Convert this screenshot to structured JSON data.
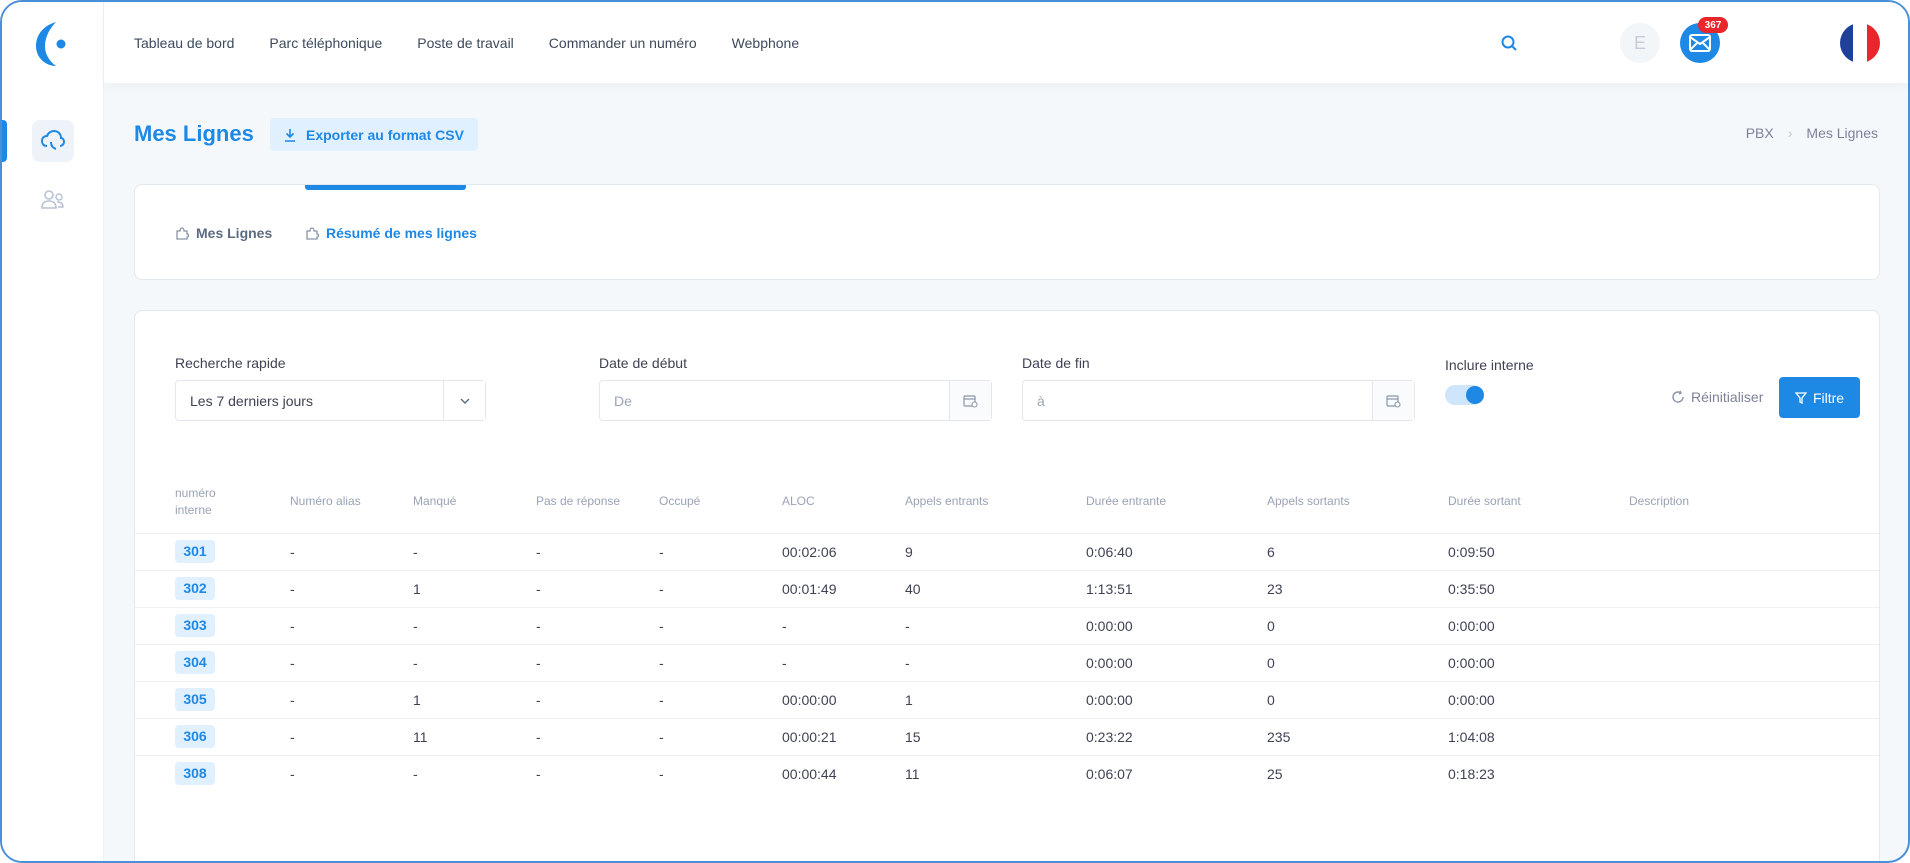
{
  "nav": {
    "items": [
      "Tableau de bord",
      "Parc téléphonique",
      "Poste de travail",
      "Commander un numéro",
      "Webphone"
    ]
  },
  "header": {
    "avatar_initial": "E",
    "mail_count": "367"
  },
  "page": {
    "title": "Mes Lignes",
    "export_label": "Exporter au format CSV",
    "breadcrumb": [
      "PBX",
      "Mes Lignes"
    ]
  },
  "tabs": [
    "Mes Lignes",
    "Résumé de mes lignes"
  ],
  "filters": {
    "quick_search_label": "Recherche rapide",
    "quick_search_value": "Les 7 derniers jours",
    "start_label": "Date de début",
    "start_placeholder": "De",
    "end_label": "Date de fin",
    "end_placeholder": "à",
    "include_internal_label": "Inclure interne",
    "include_internal_on": true,
    "reset_label": "Réinitialiser",
    "filter_label": "Filtre"
  },
  "table": {
    "headers": [
      "numéro interne",
      "Numéro alias",
      "Manqué",
      "Pas de réponse",
      "Occupé",
      "ALOC",
      "Appels entrants",
      "Durée entrante",
      "Appels sortants",
      "Durée sortant",
      "Description"
    ],
    "rows": [
      [
        "301",
        "-",
        "-",
        "-",
        "-",
        "00:02:06",
        "9",
        "0:06:40",
        "6",
        "0:09:50",
        ""
      ],
      [
        "302",
        "-",
        "1",
        "-",
        "-",
        "00:01:49",
        "40",
        "1:13:51",
        "23",
        "0:35:50",
        ""
      ],
      [
        "303",
        "-",
        "-",
        "-",
        "-",
        "-",
        "-",
        "0:00:00",
        "0",
        "0:00:00",
        ""
      ],
      [
        "304",
        "-",
        "-",
        "-",
        "-",
        "-",
        "-",
        "0:00:00",
        "0",
        "0:00:00",
        ""
      ],
      [
        "305",
        "-",
        "1",
        "-",
        "-",
        "00:00:00",
        "1",
        "0:00:00",
        "0",
        "0:00:00",
        ""
      ],
      [
        "306",
        "-",
        "11",
        "-",
        "-",
        "00:00:21",
        "15",
        "0:23:22",
        "235",
        "1:04:08",
        ""
      ],
      [
        "308",
        "-",
        "-",
        "-",
        "-",
        "00:00:44",
        "11",
        "0:06:07",
        "25",
        "0:18:23",
        ""
      ]
    ]
  },
  "colors": {
    "accent": "#1e88e5",
    "badge": "#e8262b"
  }
}
